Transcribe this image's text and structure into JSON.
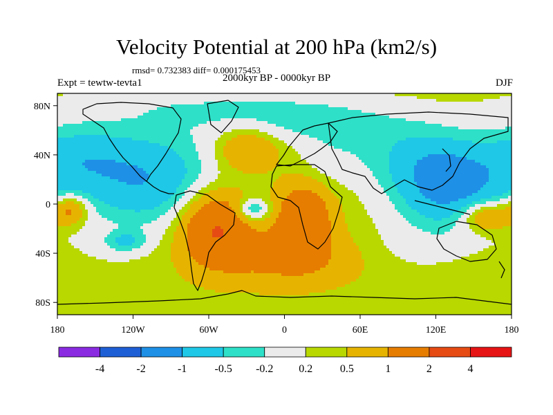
{
  "title": "Velocity Potential at 200 hPa (km2/s)",
  "stats": "rmsd= 0.732383  diff= 0.000175453",
  "left_label": "Expt = tewtw-tevta1",
  "center_label": "2000kyr BP - 0000kyr BP",
  "right_label": "DJF",
  "map": {
    "projection": "cylindrical-equidistant",
    "lon_range": [
      -180,
      180
    ],
    "lat_range": [
      -90,
      90
    ],
    "lon_ticks": [
      {
        "value": -180,
        "label": "180"
      },
      {
        "value": -120,
        "label": "120W"
      },
      {
        "value": -60,
        "label": "60W"
      },
      {
        "value": 0,
        "label": "0"
      },
      {
        "value": 60,
        "label": "60E"
      },
      {
        "value": 120,
        "label": "120E"
      },
      {
        "value": 180,
        "label": "180"
      }
    ],
    "lat_ticks": [
      {
        "value": 80,
        "label": "80N"
      },
      {
        "value": 40,
        "label": "40N"
      },
      {
        "value": 0,
        "label": "0"
      },
      {
        "value": -40,
        "label": "40S"
      },
      {
        "value": -80,
        "label": "80S"
      }
    ]
  },
  "colorbar": {
    "labels": [
      "-4",
      "-2",
      "-1",
      "-0.5",
      "-0.2",
      "0.2",
      "0.5",
      "1",
      "2",
      "4"
    ],
    "colors": [
      "#8a2be2",
      "#1f5fd6",
      "#1e90e6",
      "#1ec8e6",
      "#2ee0c8",
      "#ebebeb",
      "#b8d800",
      "#e6b400",
      "#e67d00",
      "#e64b14",
      "#e61414"
    ]
  },
  "field": {
    "levels": [
      -4,
      -2,
      -1,
      -0.5,
      -0.2,
      0.2,
      0.5,
      1,
      2,
      4
    ],
    "background": 0.35,
    "anomalies": [
      {
        "lon": -110,
        "lat": 20,
        "rlon": 60,
        "rlat": 40,
        "amp": -1.3
      },
      {
        "lon": -165,
        "lat": 40,
        "rlon": 40,
        "rlat": 28,
        "amp": -0.7
      },
      {
        "lon": 130,
        "lat": 15,
        "rlon": 45,
        "rlat": 35,
        "amp": -1.6
      },
      {
        "lon": 95,
        "lat": 40,
        "rlon": 50,
        "rlat": 25,
        "amp": -0.5
      },
      {
        "lon": 20,
        "lat": 65,
        "rlon": 90,
        "rlat": 18,
        "amp": -0.6
      },
      {
        "lon": -50,
        "lat": 80,
        "rlon": 120,
        "rlat": 14,
        "amp": -0.4
      },
      {
        "lon": -30,
        "lat": 45,
        "rlon": 25,
        "rlat": 18,
        "amp": 0.9
      },
      {
        "lon": -55,
        "lat": -18,
        "rlon": 28,
        "rlat": 30,
        "amp": 1.8
      },
      {
        "lon": 15,
        "lat": -12,
        "rlon": 22,
        "rlat": 28,
        "amp": 1.5
      },
      {
        "lon": 0,
        "lat": -45,
        "rlon": 55,
        "rlat": 22,
        "amp": 0.8
      },
      {
        "lon": 160,
        "lat": -10,
        "rlon": 20,
        "rlat": 12,
        "amp": 1.2
      },
      {
        "lon": -170,
        "lat": -5,
        "rlon": 14,
        "rlat": 12,
        "amp": 1.1
      },
      {
        "lon": -25,
        "lat": -5,
        "rlon": 14,
        "rlat": 9,
        "amp": -1.1
      },
      {
        "lon": -125,
        "lat": -30,
        "rlon": 16,
        "rlat": 8,
        "amp": -0.6
      },
      {
        "lon": 35,
        "lat": 35,
        "rlon": 25,
        "rlat": 20,
        "amp": -0.3
      },
      {
        "lon": 100,
        "lat": -35,
        "rlon": 40,
        "rlat": 20,
        "amp": -0.2
      },
      {
        "lon": -135,
        "lat": -35,
        "rlon": 25,
        "rlat": 12,
        "amp": -0.2
      }
    ]
  }
}
